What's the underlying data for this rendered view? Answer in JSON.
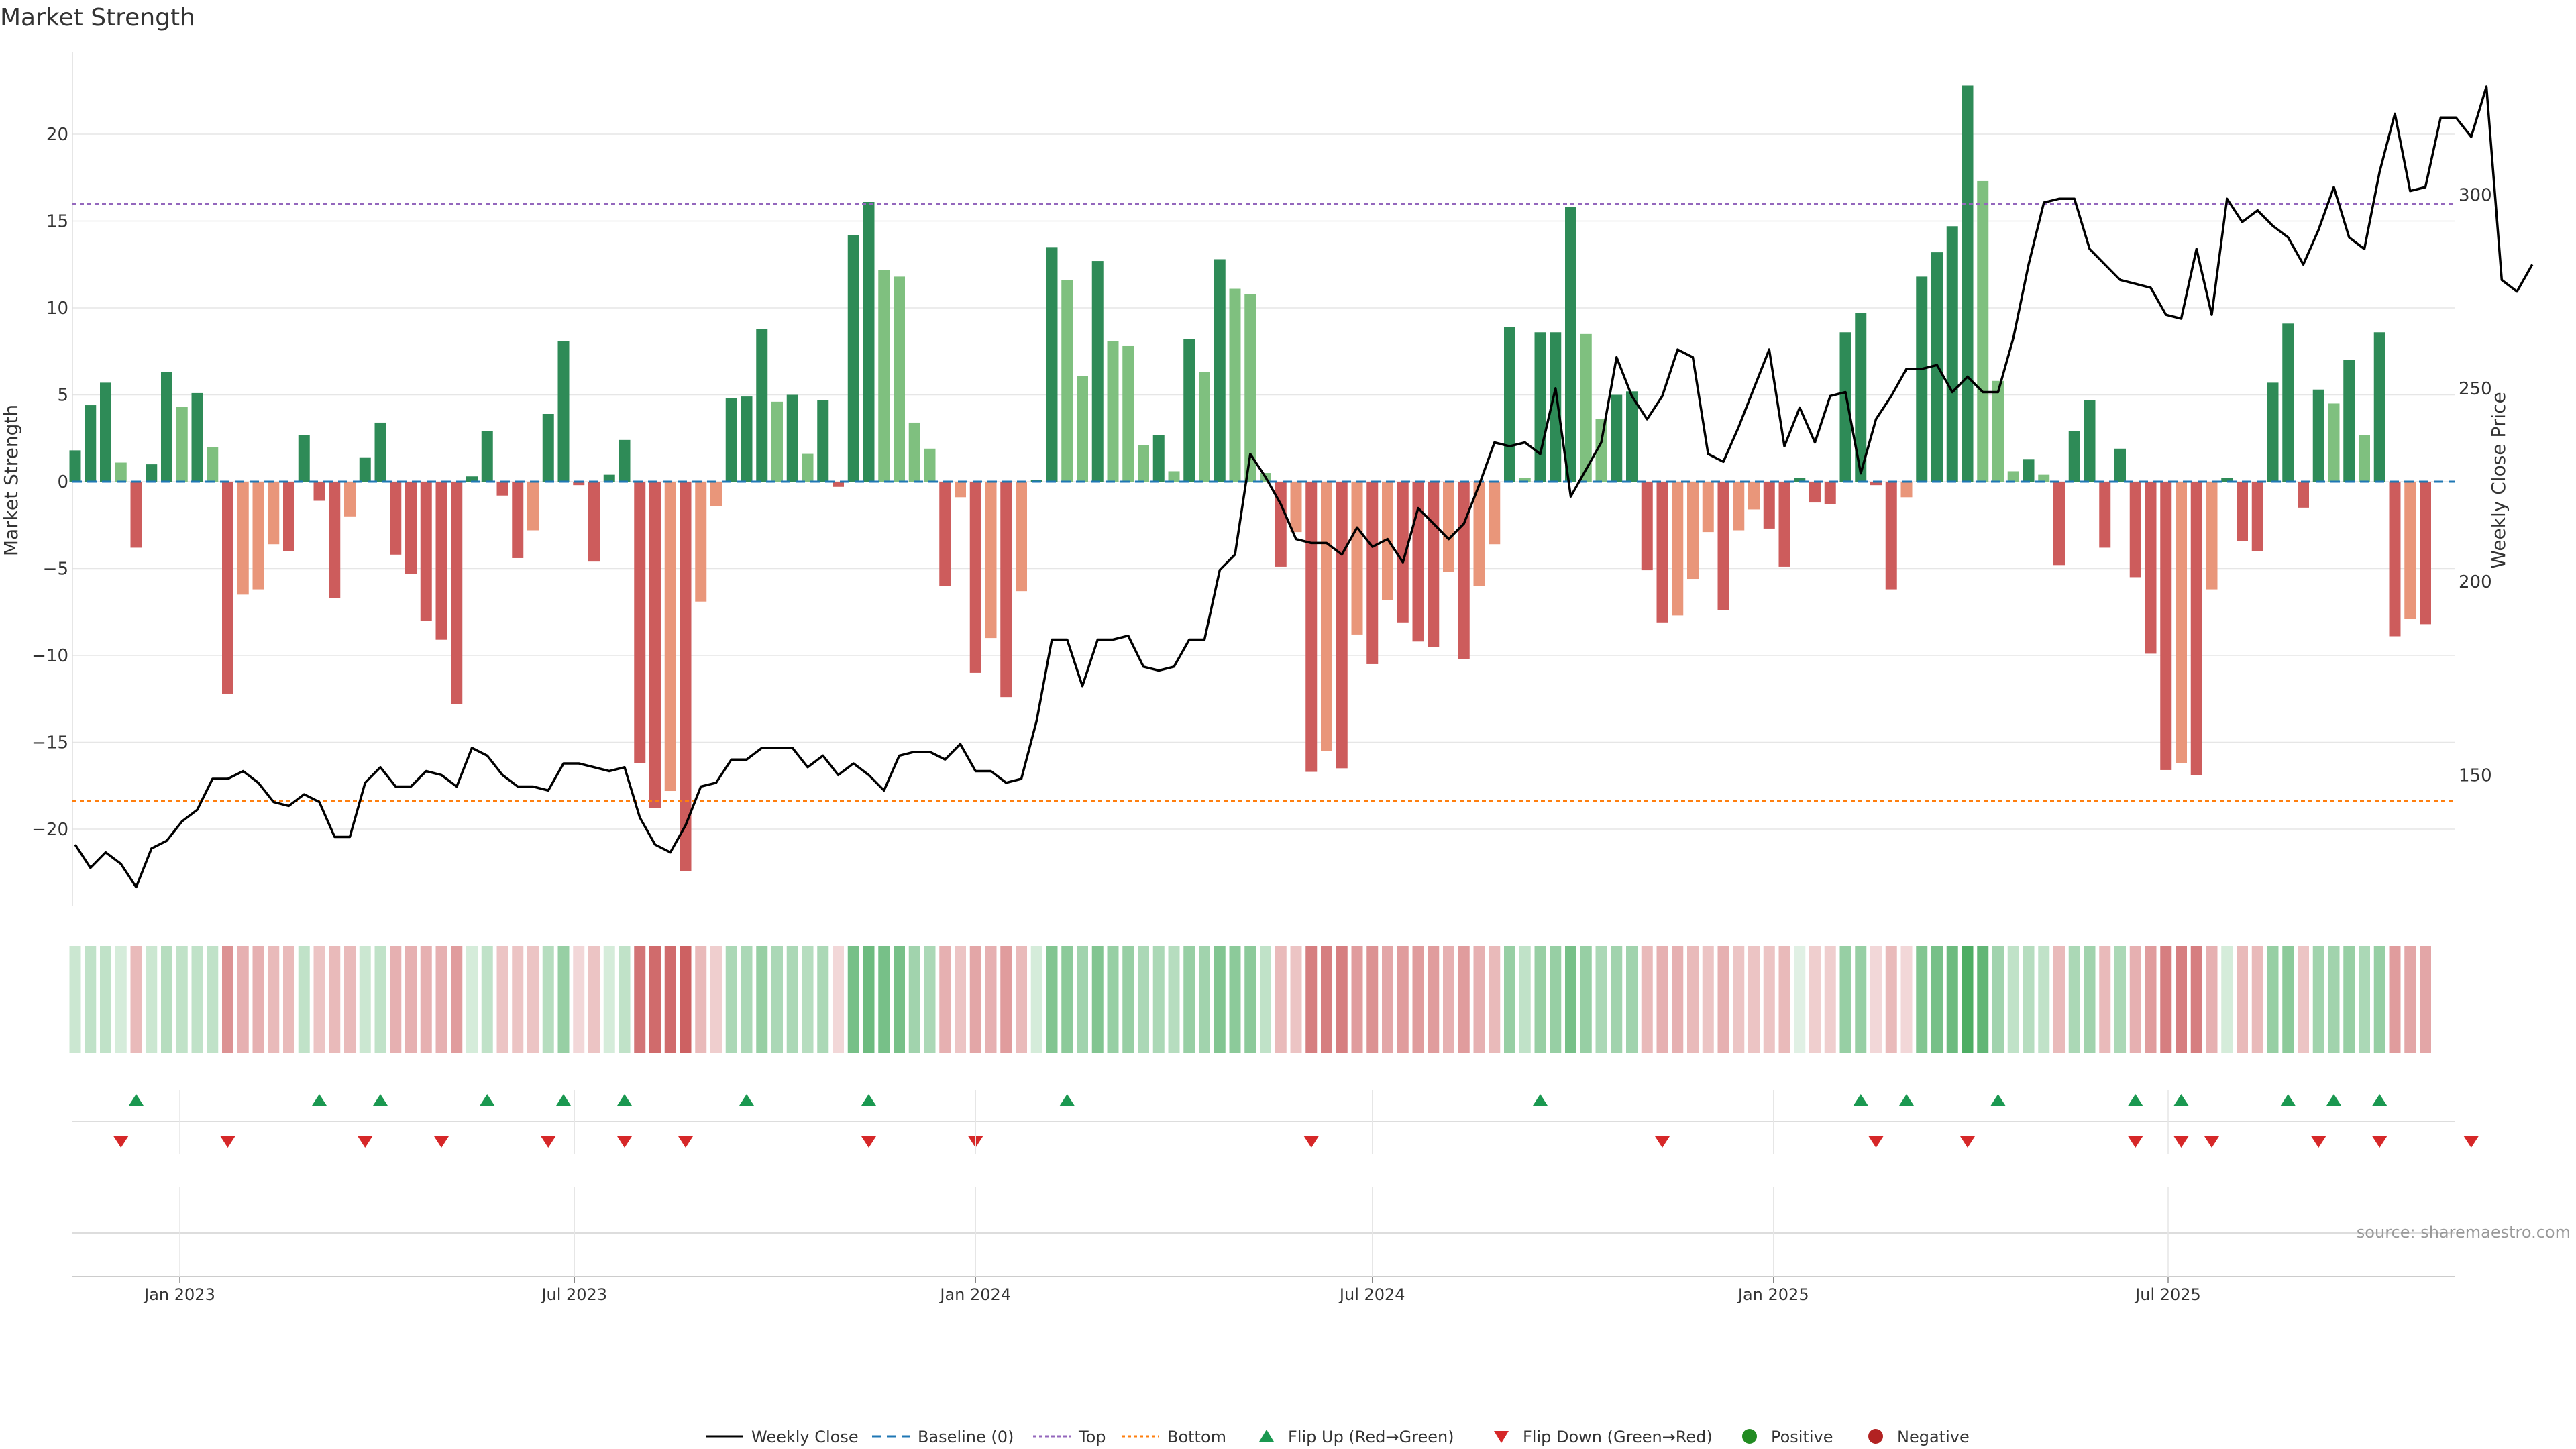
{
  "chart_data": {
    "type": "bar",
    "title": "Market Strength",
    "ylabel": "Market Strength",
    "y2label": "Weekly Close Price",
    "ylim": [
      -24.5,
      25
    ],
    "y2lim": [
      120,
      335
    ],
    "yticks": [
      -20,
      -15,
      -10,
      -5,
      0,
      5,
      10,
      15,
      20
    ],
    "y2ticks": [
      150,
      200,
      250,
      300
    ],
    "x_start": "2022-11-14",
    "x_step_days": 7,
    "xticks": [
      {
        "label": "Jan 2023",
        "date": "2023-01-01"
      },
      {
        "label": "Jul 2023",
        "date": "2023-07-01"
      },
      {
        "label": "Jan 2024",
        "date": "2024-01-01"
      },
      {
        "label": "Jul 2024",
        "date": "2024-07-01"
      },
      {
        "label": "Jan 2025",
        "date": "2025-01-01"
      },
      {
        "label": "Jul 2025",
        "date": "2025-07-01"
      }
    ],
    "top_level": 16,
    "bottom_level": -18.4,
    "strength": [
      1.8,
      4.4,
      5.7,
      1.1,
      -3.8,
      1.0,
      6.3,
      4.3,
      5.1,
      2.0,
      -12.2,
      -6.5,
      -6.2,
      -3.6,
      -4.0,
      2.7,
      -1.1,
      -6.7,
      -2.0,
      1.4,
      3.4,
      -4.2,
      -5.3,
      -8.0,
      -9.1,
      -12.8,
      0.3,
      2.9,
      -0.8,
      -4.4,
      -2.8,
      3.9,
      8.1,
      -0.2,
      -4.6,
      0.4,
      2.4,
      -16.2,
      -18.8,
      -17.8,
      -22.4,
      -6.9,
      -1.4,
      4.8,
      4.9,
      8.8,
      4.6,
      5.0,
      1.6,
      4.7,
      -0.3,
      14.2,
      16.1,
      12.2,
      11.8,
      3.4,
      1.9,
      -6.0,
      -0.9,
      -11.0,
      -9.0,
      -12.4,
      -6.3,
      0.1,
      13.5,
      11.6,
      6.1,
      12.7,
      8.1,
      7.8,
      2.1,
      2.7,
      0.6,
      8.2,
      6.3,
      12.8,
      11.1,
      10.8,
      0.5,
      -4.9,
      -2.9,
      -16.7,
      -15.5,
      -16.5,
      -8.8,
      -10.5,
      -6.8,
      -8.1,
      -9.2,
      -9.5,
      -5.2,
      -10.2,
      -6.0,
      -3.6,
      8.9,
      0.2,
      8.6,
      8.6,
      15.8,
      8.5,
      3.6,
      5.0,
      5.2,
      -5.1,
      -8.1,
      -7.7,
      -5.6,
      -2.9,
      -7.4,
      -2.8,
      -1.6,
      -2.7,
      -4.9,
      0.2,
      -1.2,
      -1.3,
      8.6,
      9.7,
      -0.2,
      -6.2,
      -0.9,
      11.8,
      13.2,
      14.7,
      22.8,
      17.3,
      5.8,
      0.6,
      1.3,
      0.4,
      -4.8,
      2.9,
      4.7,
      -3.8,
      1.9,
      -5.5,
      -9.9,
      -16.6,
      -16.2,
      -16.9,
      -6.2,
      0.2,
      -3.4,
      -4.0,
      5.7,
      9.1,
      -1.5,
      5.3,
      4.5,
      7.0,
      2.7,
      8.6,
      -8.9,
      -7.9,
      -8.2
    ],
    "close": [
      132,
      126,
      130,
      127,
      121,
      131,
      133,
      138,
      141,
      149,
      149,
      151,
      148,
      143,
      142,
      145,
      143,
      134,
      134,
      148,
      152,
      147,
      147,
      151,
      150,
      147,
      157,
      155,
      150,
      147,
      147,
      146,
      153,
      153,
      152,
      151,
      152,
      139,
      132,
      130,
      137,
      147,
      148,
      154,
      154,
      157,
      157,
      157,
      152,
      155,
      150,
      153,
      150,
      146,
      155,
      156,
      156,
      154,
      158,
      151,
      151,
      148,
      149,
      164,
      185,
      185,
      173,
      185,
      185,
      186,
      178,
      177,
      178,
      185,
      185,
      203,
      207,
      233,
      227,
      220,
      211,
      210,
      210,
      207,
      214,
      209,
      211,
      205,
      219,
      215,
      211,
      215,
      225,
      236,
      235,
      236,
      233,
      250,
      222,
      229,
      236,
      258,
      248,
      242,
      248,
      260,
      258,
      233,
      231,
      240,
      250,
      260,
      235,
      245,
      236,
      248,
      249,
      228,
      242,
      248,
      255,
      255,
      256,
      249,
      253,
      249,
      249,
      263,
      282,
      298,
      299,
      299,
      286,
      282,
      278,
      277,
      276,
      269,
      268,
      286,
      269,
      299,
      293,
      296,
      292,
      289,
      282,
      291,
      302,
      289,
      286,
      306,
      321,
      301,
      302,
      320,
      320,
      315,
      328,
      278,
      275,
      282
    ],
    "band": [
      0.25,
      0.3,
      0.3,
      0.2,
      0.35,
      0.25,
      0.35,
      0.3,
      0.3,
      0.3,
      0.55,
      0.4,
      0.4,
      0.35,
      0.35,
      0.3,
      0.3,
      0.35,
      0.35,
      0.25,
      0.3,
      0.4,
      0.4,
      0.4,
      0.4,
      0.5,
      0.2,
      0.3,
      0.3,
      0.3,
      0.3,
      0.35,
      0.5,
      0.2,
      0.3,
      0.2,
      0.3,
      0.7,
      0.75,
      0.75,
      0.8,
      0.35,
      0.25,
      0.4,
      0.4,
      0.5,
      0.4,
      0.4,
      0.35,
      0.4,
      0.2,
      0.65,
      0.7,
      0.65,
      0.65,
      0.45,
      0.4,
      0.4,
      0.3,
      0.45,
      0.4,
      0.5,
      0.35,
      0.2,
      0.6,
      0.55,
      0.45,
      0.6,
      0.5,
      0.5,
      0.4,
      0.4,
      0.35,
      0.5,
      0.45,
      0.6,
      0.55,
      0.55,
      0.3,
      0.35,
      0.3,
      0.65,
      0.65,
      0.65,
      0.5,
      0.55,
      0.45,
      0.5,
      0.5,
      0.5,
      0.4,
      0.5,
      0.4,
      0.35,
      0.5,
      0.3,
      0.5,
      0.5,
      0.65,
      0.5,
      0.4,
      0.45,
      0.45,
      0.35,
      0.4,
      0.4,
      0.35,
      0.3,
      0.4,
      0.3,
      0.3,
      0.3,
      0.35,
      0.15,
      0.25,
      0.25,
      0.5,
      0.5,
      0.2,
      0.35,
      0.2,
      0.6,
      0.65,
      0.7,
      0.85,
      0.75,
      0.45,
      0.3,
      0.35,
      0.3,
      0.35,
      0.4,
      0.45,
      0.35,
      0.4,
      0.4,
      0.5,
      0.65,
      0.65,
      0.65,
      0.4,
      0.2,
      0.35,
      0.35,
      0.5,
      0.55,
      0.3,
      0.45,
      0.45,
      0.5,
      0.4,
      0.5,
      0.5,
      0.45,
      0.45
    ],
    "flip_up_dates": [
      "2022-12-12",
      "2023-03-06",
      "2023-04-03",
      "2023-05-22",
      "2023-06-26",
      "2023-07-24",
      "2023-09-18",
      "2023-11-13",
      "2024-02-12",
      "2024-09-16",
      "2025-02-10",
      "2025-03-03",
      "2025-04-14",
      "2025-06-16",
      "2025-07-07",
      "2025-08-25",
      "2025-09-15",
      "2025-10-06"
    ],
    "flip_down_dates": [
      "2022-12-05",
      "2023-01-23",
      "2023-03-27",
      "2023-05-01",
      "2023-06-19",
      "2023-07-24",
      "2023-08-21",
      "2023-11-13",
      "2024-01-01",
      "2024-06-03",
      "2024-11-11",
      "2025-02-17",
      "2025-03-31",
      "2025-06-16",
      "2025-07-07",
      "2025-07-21",
      "2025-09-08",
      "2025-10-06",
      "2025-11-17"
    ],
    "legend": [
      "Weekly Close",
      "Baseline (0)",
      "Top",
      "Bottom",
      "Flip Up (Red→Green)",
      "Flip Down (Green→Red)",
      "Positive",
      "Negative"
    ],
    "source": "source: sharemaestro.com",
    "colors": {
      "pos_strong": "#2e8b57",
      "pos_light": "#7fc07f",
      "neg_strong": "#cd5c5c",
      "neg_light": "#e9967a",
      "close_line": "#000000",
      "baseline": "#1f77b4",
      "top_line": "#9467bd",
      "bottom_line": "#ff7f0e",
      "flip_up": "#1a9850",
      "flip_down": "#d62728",
      "positive_dot": "#228b22",
      "negative_dot": "#b22222",
      "grid": "#e6e6e6"
    }
  }
}
